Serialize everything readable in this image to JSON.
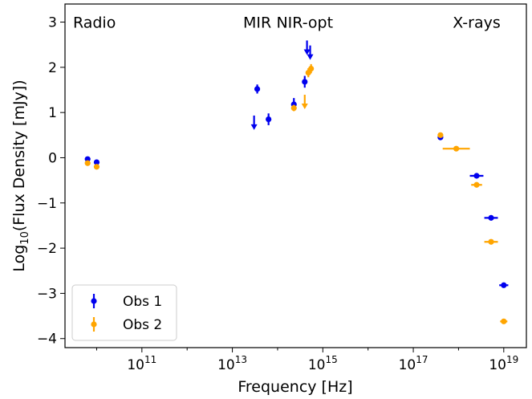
{
  "chart_data": {
    "type": "scatter",
    "title": "",
    "xlabel": "Frequency [Hz]",
    "ylabel": {
      "prefix": "Log",
      "sub": "10",
      "rest": "(Flux Density [mJy])"
    },
    "x_scale": "log",
    "xlim_log10": [
      9.3,
      19.5
    ],
    "ylim": [
      -4.2,
      3.4
    ],
    "x_ticks": [
      {
        "exp": 11,
        "base": "10",
        "sup": "11"
      },
      {
        "exp": 13,
        "base": "10",
        "sup": "13"
      },
      {
        "exp": 15,
        "base": "10",
        "sup": "15"
      },
      {
        "exp": 17,
        "base": "10",
        "sup": "17"
      },
      {
        "exp": 19,
        "base": "10",
        "sup": "19"
      }
    ],
    "y_ticks": [
      {
        "value": 3,
        "label": "3"
      },
      {
        "value": 2,
        "label": "2"
      },
      {
        "value": 1,
        "label": "1"
      },
      {
        "value": 0,
        "label": "0"
      },
      {
        "value": -1,
        "label": "−1"
      },
      {
        "value": -2,
        "label": "−2"
      },
      {
        "value": -3,
        "label": "−3"
      },
      {
        "value": -4,
        "label": "−4"
      }
    ],
    "grid": false,
    "legend": {
      "placement": "lower-left"
    },
    "annotations": [
      {
        "text": "Radio",
        "x_log10": 9.95,
        "y": 3.0
      },
      {
        "text": "MIR",
        "x_log10": 13.55,
        "y": 3.0
      },
      {
        "text": "NIR-opt",
        "x_log10": 14.6,
        "y": 3.0
      },
      {
        "text": "X-rays",
        "x_log10": 18.4,
        "y": 3.0
      }
    ],
    "series": [
      {
        "name": "Obs 1",
        "color": "#0000ee",
        "points": [
          {
            "x_log10": 9.8,
            "y": -0.03,
            "yerr": 0.05
          },
          {
            "x_log10": 10.0,
            "y": -0.1,
            "yerr": 0.05
          },
          {
            "x_log10": 13.55,
            "y": 1.52,
            "yerr": 0.1
          },
          {
            "x_log10": 13.8,
            "y": 0.85,
            "yerr": 0.13
          },
          {
            "x_log10": 14.36,
            "y": 1.18,
            "yerr": 0.14
          },
          {
            "x_log10": 14.6,
            "y": 1.68,
            "yerr": 0.13
          },
          {
            "x_log10": 17.6,
            "y": 0.45,
            "yerr": 0.06
          },
          {
            "x_log10": 18.4,
            "y": -0.4,
            "xerr_log10": 0.15
          },
          {
            "x_log10": 18.72,
            "y": -1.33,
            "xerr_log10": 0.15
          },
          {
            "x_log10": 19.0,
            "y": -2.82,
            "xerr_log10": 0.1
          }
        ],
        "upper_limits": [
          {
            "x_log10": 13.48,
            "y": 0.72
          },
          {
            "x_log10": 14.65,
            "y": 2.38
          },
          {
            "x_log10": 14.72,
            "y": 2.27
          }
        ]
      },
      {
        "name": "Obs 2",
        "color": "#ffa500",
        "points": [
          {
            "x_log10": 9.8,
            "y": -0.12,
            "yerr": 0.04
          },
          {
            "x_log10": 10.0,
            "y": -0.2,
            "yerr": 0.04
          },
          {
            "x_log10": 14.36,
            "y": 1.1,
            "yerr": 0.07
          },
          {
            "x_log10": 14.68,
            "y": 1.88,
            "yerr": 0.1
          },
          {
            "x_log10": 14.74,
            "y": 1.97,
            "yerr": 0.1
          },
          {
            "x_log10": 17.6,
            "y": 0.5,
            "yerr": 0.05
          },
          {
            "x_log10": 17.95,
            "y": 0.2,
            "xerr_log10": 0.3
          },
          {
            "x_log10": 18.4,
            "y": -0.6,
            "xerr_log10": 0.12
          },
          {
            "x_log10": 18.72,
            "y": -1.86,
            "xerr_log10": 0.15
          },
          {
            "x_log10": 19.0,
            "y": -3.62,
            "xerr_log10": 0.08
          }
        ],
        "upper_limits": [
          {
            "x_log10": 14.6,
            "y": 1.18
          }
        ]
      }
    ]
  }
}
